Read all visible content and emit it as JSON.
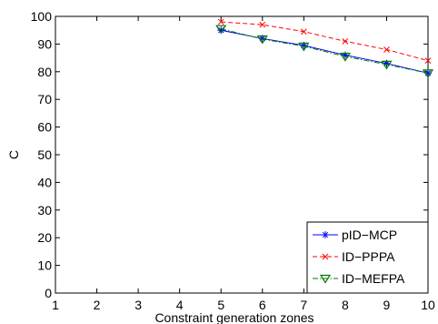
{
  "chart_data": {
    "type": "line",
    "xlabel": "Constraint generation zones",
    "ylabel": "C",
    "xlim": [
      1,
      10
    ],
    "ylim": [
      0,
      100
    ],
    "xticks": [
      1,
      2,
      3,
      4,
      5,
      6,
      7,
      8,
      9,
      10
    ],
    "yticks": [
      0,
      10,
      20,
      30,
      40,
      50,
      60,
      70,
      80,
      90,
      100
    ],
    "grid": false,
    "legend_position": "bottom-right",
    "x": [
      5,
      6,
      7,
      8,
      9,
      10
    ],
    "series": [
      {
        "name": "pID−MCP",
        "values": [
          95,
          92,
          89.5,
          86,
          83,
          79.5
        ],
        "color": "#0000ff",
        "line_style": "solid",
        "marker": "star"
      },
      {
        "name": "ID−PPPA",
        "values": [
          98,
          97,
          94.5,
          91,
          88,
          84
        ],
        "color": "#ff0000",
        "line_style": "dashed",
        "marker": "x"
      },
      {
        "name": "ID−MEFPA",
        "values": [
          95.5,
          91.8,
          89.2,
          85.5,
          82.6,
          79.5
        ],
        "color": "#007a00",
        "line_style": "dash-dot",
        "marker": "triangle-down"
      }
    ]
  }
}
